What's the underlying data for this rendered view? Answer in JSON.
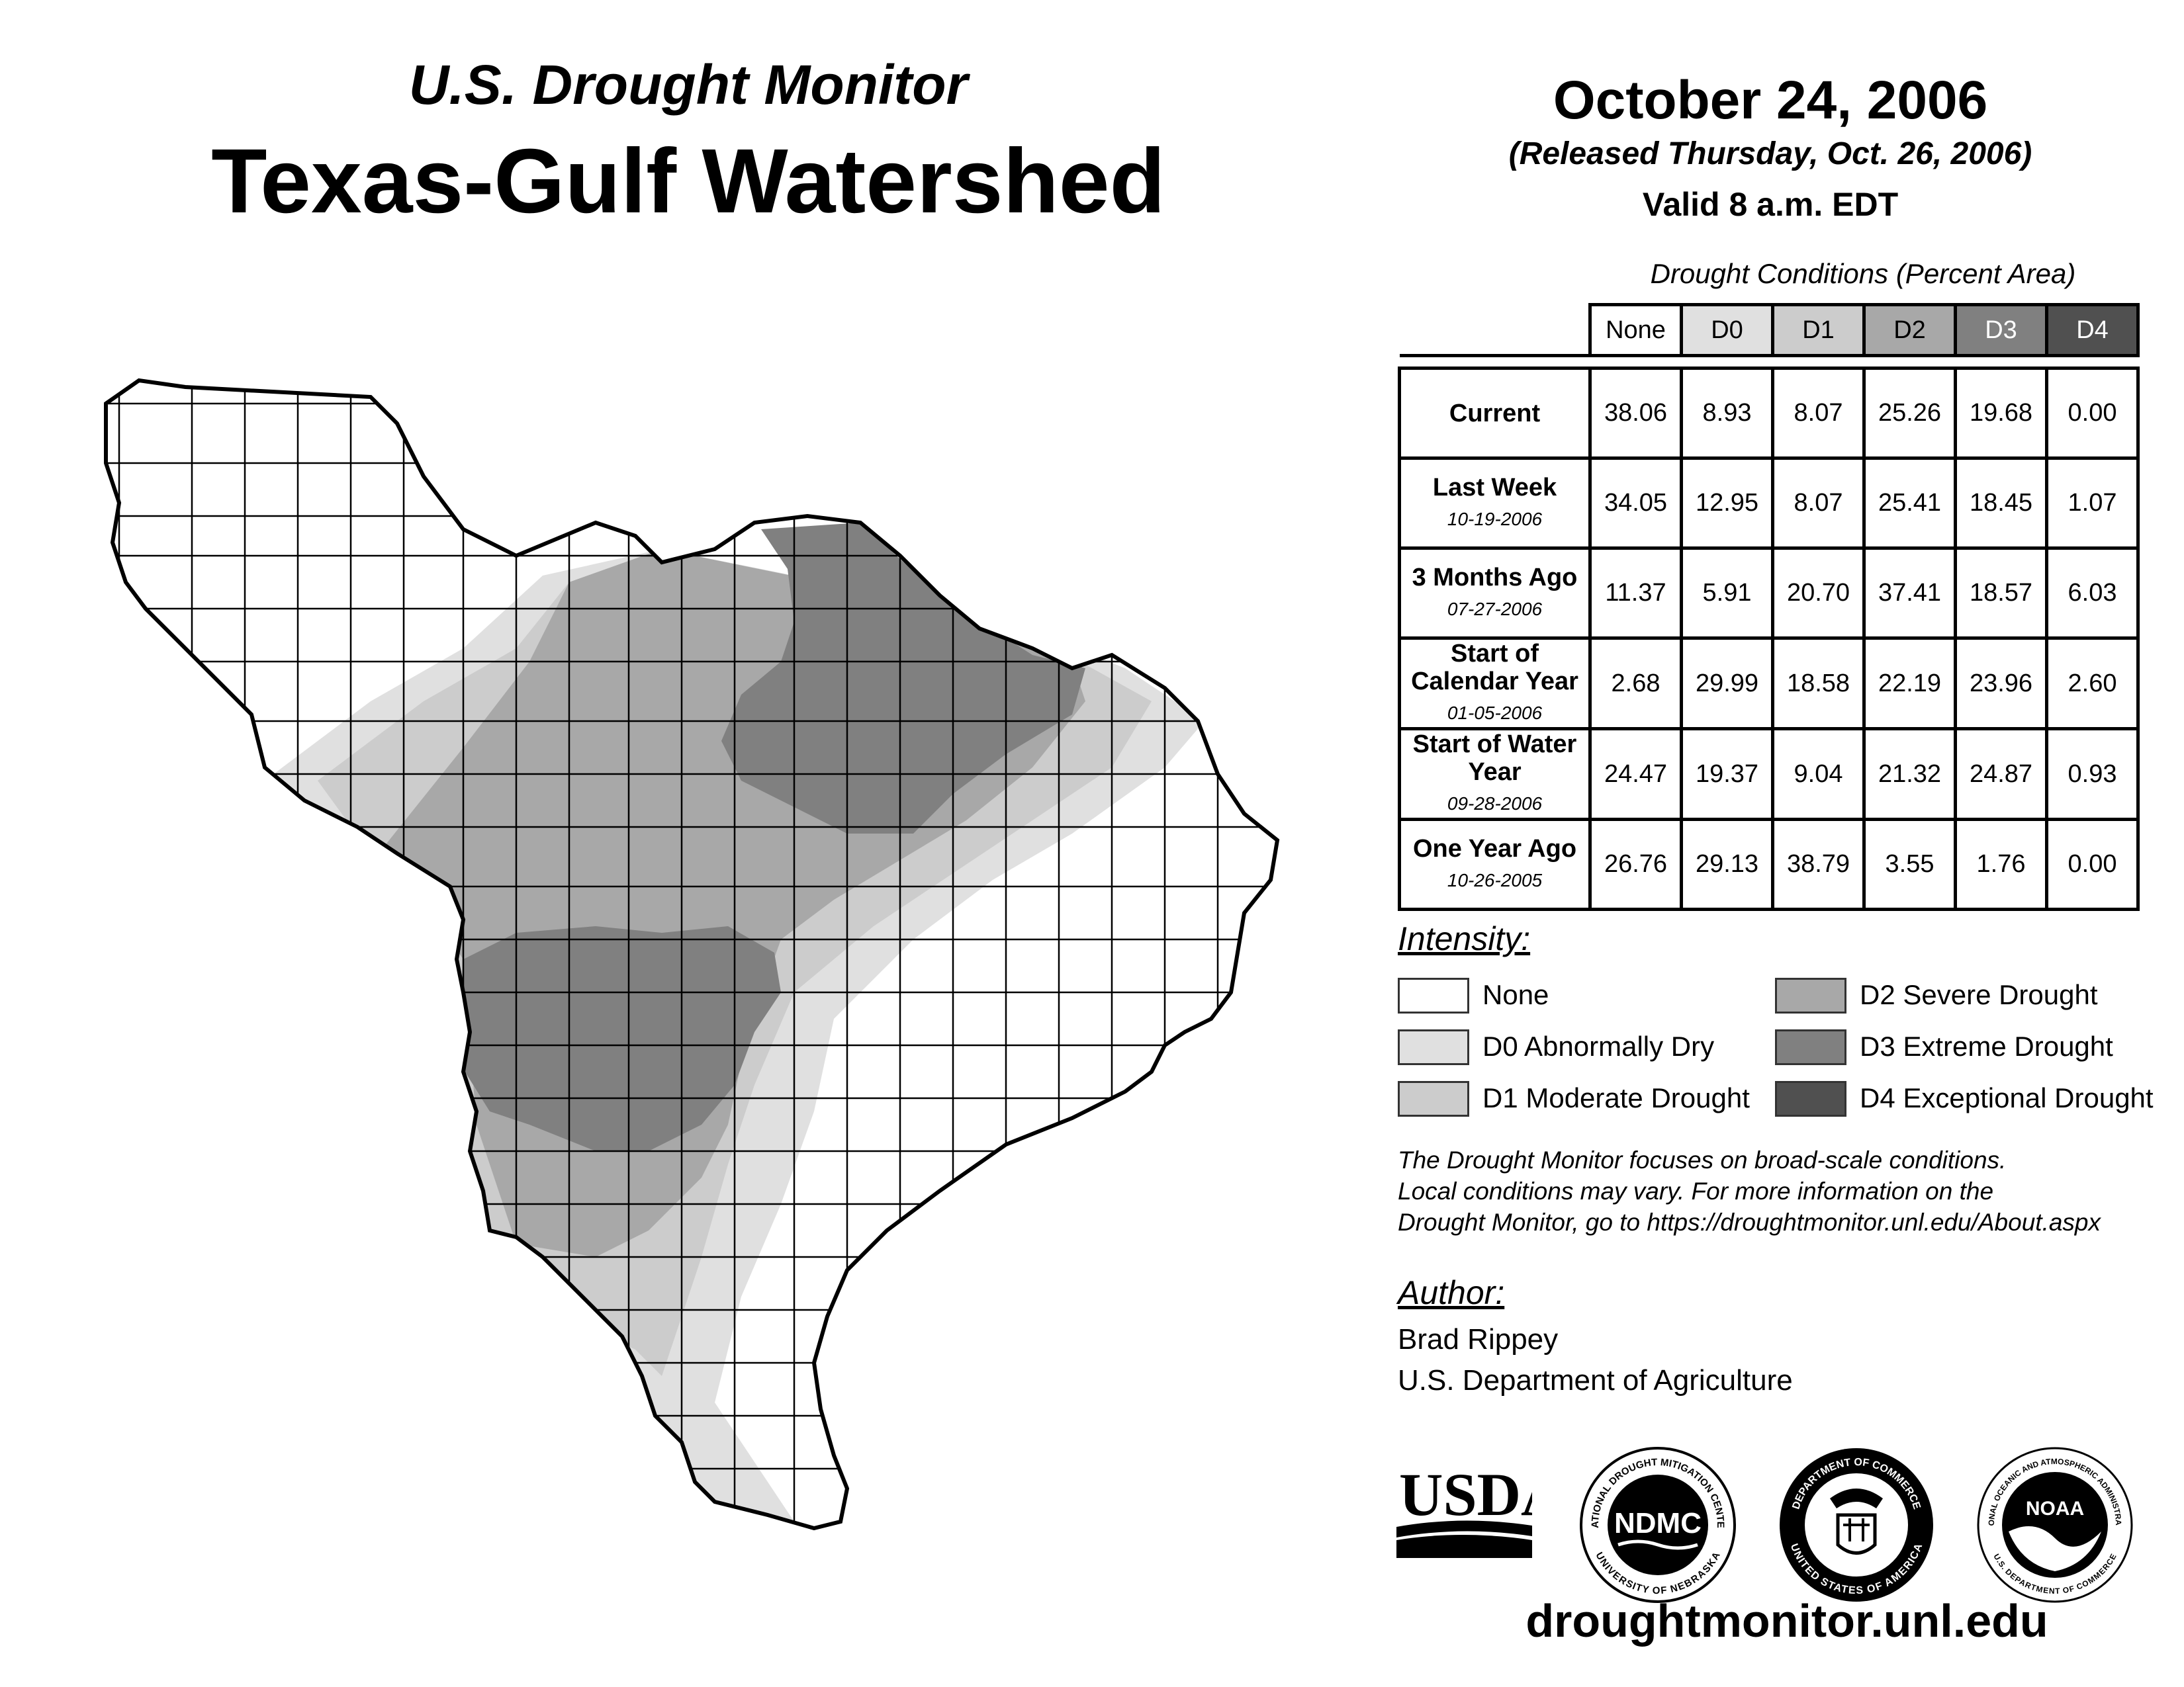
{
  "header": {
    "subtitle": "U.S. Drought Monitor",
    "title": "Texas-Gulf Watershed",
    "date": "October 24, 2006",
    "released": "(Released Thursday, Oct. 26, 2006)",
    "valid": "Valid 8 a.m. EDT"
  },
  "table": {
    "title": "Drought Conditions (Percent Area)",
    "columns": [
      "None",
      "D0",
      "D1",
      "D2",
      "D3",
      "D4"
    ],
    "column_colors": [
      "#ffffff",
      "#e0e0e0",
      "#cccccc",
      "#a8a8a8",
      "#808080",
      "#505050"
    ],
    "rows": [
      {
        "label": "Current",
        "date": "",
        "values": [
          "38.06",
          "8.93",
          "8.07",
          "25.26",
          "19.68",
          "0.00"
        ]
      },
      {
        "label": "Last Week",
        "date": "10-19-2006",
        "values": [
          "34.05",
          "12.95",
          "8.07",
          "25.41",
          "18.45",
          "1.07"
        ]
      },
      {
        "label": "3 Months Ago",
        "date": "07-27-2006",
        "values": [
          "11.37",
          "5.91",
          "20.70",
          "37.41",
          "18.57",
          "6.03"
        ]
      },
      {
        "label": "Start of Calendar Year",
        "date": "01-05-2006",
        "values": [
          "2.68",
          "29.99",
          "18.58",
          "22.19",
          "23.96",
          "2.60"
        ]
      },
      {
        "label": "Start of Water Year",
        "date": "09-28-2006",
        "values": [
          "24.47",
          "19.37",
          "9.04",
          "21.32",
          "24.87",
          "0.93"
        ]
      },
      {
        "label": "One Year Ago",
        "date": "10-26-2005",
        "values": [
          "26.76",
          "29.13",
          "38.79",
          "3.55",
          "1.76",
          "0.00"
        ]
      }
    ]
  },
  "legend": {
    "title": "Intensity:",
    "items": [
      {
        "label": "None",
        "color": "#ffffff"
      },
      {
        "label": "D0 Abnormally Dry",
        "color": "#e0e0e0"
      },
      {
        "label": "D1 Moderate Drought",
        "color": "#cccccc"
      },
      {
        "label": "D2 Severe Drought",
        "color": "#a8a8a8"
      },
      {
        "label": "D3 Extreme Drought",
        "color": "#808080"
      },
      {
        "label": "D4 Exceptional Drought",
        "color": "#505050"
      }
    ]
  },
  "note": {
    "line1": "The Drought Monitor focuses on broad-scale conditions.",
    "line2": "Local conditions may vary. For more information on the",
    "line3": "Drought Monitor, go to https://droughtmonitor.unl.edu/About.aspx"
  },
  "author": {
    "title": "Author:",
    "name": "Brad Rippey",
    "org": "U.S. Department of Agriculture"
  },
  "logos": {
    "usda": "USDA",
    "ndmc": "NDMC",
    "ndmc_ring_top": "NATIONAL DROUGHT MITIGATION CENTER",
    "ndmc_ring_bottom": "UNIVERSITY OF NEBRASKA",
    "doc_ring_top": "DEPARTMENT OF COMMERCE",
    "doc_ring_bottom": "UNITED STATES OF AMERICA",
    "noaa": "NOAA",
    "noaa_ring_top": "NATIONAL OCEANIC AND ATMOSPHERIC ADMINISTRATION",
    "noaa_ring_bottom": "U.S. DEPARTMENT OF COMMERCE"
  },
  "footer": {
    "url": "droughtmonitor.unl.edu"
  }
}
